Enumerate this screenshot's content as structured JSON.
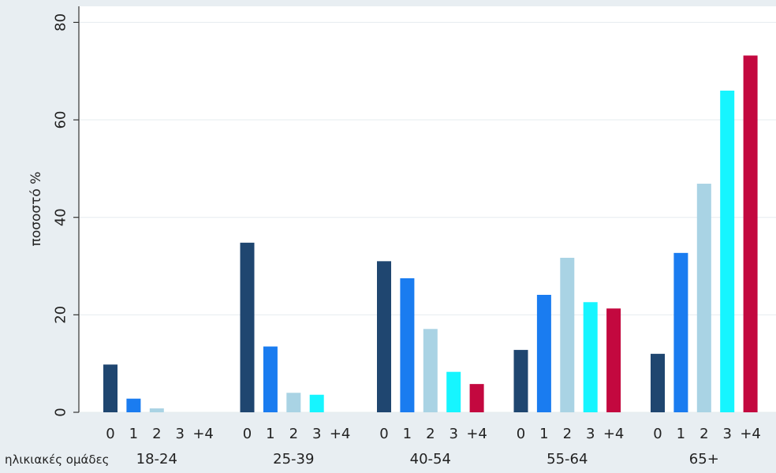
{
  "chart_data": {
    "type": "bar",
    "title": "",
    "ylabel": "ποσοστό %",
    "xlabel": "ηλικιακές ομάδες",
    "ylim": [
      0,
      80
    ],
    "yticks": [
      0,
      20,
      40,
      60,
      80
    ],
    "grid": true,
    "categories": [
      "18-24",
      "25-39",
      "40-54",
      "55-64",
      "65+"
    ],
    "subcategories": [
      "0",
      "1",
      "2",
      "3",
      "+4"
    ],
    "colors": [
      "#1f4670",
      "#1a7cf0",
      "#a9d3e4",
      "#16f5ff",
      "#c3083f"
    ],
    "series": [
      {
        "values": [
          9.8,
          34.8,
          31.0,
          12.8,
          12.0
        ]
      },
      {
        "values": [
          2.8,
          13.5,
          27.5,
          24.1,
          32.7
        ]
      },
      {
        "values": [
          0.8,
          4.0,
          17.1,
          31.7,
          46.9
        ]
      },
      {
        "values": [
          0,
          3.6,
          8.3,
          22.6,
          66.0
        ]
      },
      {
        "values": [
          0,
          0,
          5.8,
          21.3,
          73.2
        ]
      }
    ]
  }
}
